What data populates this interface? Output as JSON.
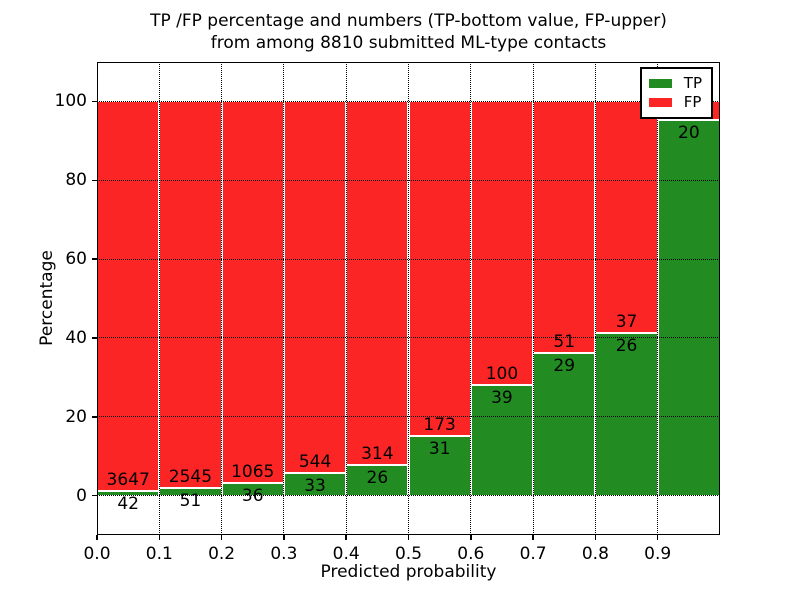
{
  "title": {
    "line1": "TP /FP percentage and numbers (TP-bottom value, FP-upper)",
    "line2": "from among 8810 submitted ML-type contacts"
  },
  "axes": {
    "xlabel": "Predicted probability",
    "ylabel": "Percentage",
    "xtick_labels": [
      "0.0",
      "0.1",
      "0.2",
      "0.3",
      "0.4",
      "0.5",
      "0.6",
      "0.7",
      "0.8",
      "0.9"
    ],
    "yticks": [
      {
        "value": 0,
        "label": "0"
      },
      {
        "value": 20,
        "label": "20"
      },
      {
        "value": 40,
        "label": "40"
      },
      {
        "value": 60,
        "label": "60"
      },
      {
        "value": 80,
        "label": "80"
      },
      {
        "value": 100,
        "label": "100"
      }
    ],
    "xlim": [
      0.0,
      1.0
    ],
    "ylim": [
      -10,
      110
    ],
    "grid_style": "dotted"
  },
  "legend": {
    "position": "upper-right",
    "items": [
      {
        "label": "TP",
        "color": "#228b22"
      },
      {
        "label": "FP",
        "color": "#fc2525"
      }
    ]
  },
  "colors": {
    "tp_green": "#228b22",
    "fp_red": "#fc2525",
    "bar_edge": "#ffffff",
    "grid": "#000000",
    "background": "#ffffff",
    "text": "#000000"
  },
  "chart_data": {
    "type": "bar",
    "stacked": true,
    "normalized_to_percent": true,
    "title": "TP /FP percentage and numbers (TP-bottom value, FP-upper) from among 8810 submitted ML-type contacts",
    "xlabel": "Predicted probability",
    "ylabel": "Percentage",
    "total_contacts": 8810,
    "bin_width": 0.1,
    "ylim": [
      -10,
      110
    ],
    "grid": true,
    "legend_entries": [
      "TP",
      "FP"
    ],
    "bins": [
      {
        "x0": 0.0,
        "x1": 0.1,
        "tp": 42,
        "fp": 3647,
        "tp_label": "42",
        "fp_label": "3647"
      },
      {
        "x0": 0.1,
        "x1": 0.2,
        "tp": 51,
        "fp": 2545,
        "tp_label": "51",
        "fp_label": "2545"
      },
      {
        "x0": 0.2,
        "x1": 0.3,
        "tp": 36,
        "fp": 1065,
        "tp_label": "36",
        "fp_label": "1065"
      },
      {
        "x0": 0.3,
        "x1": 0.4,
        "tp": 33,
        "fp": 544,
        "tp_label": "33",
        "fp_label": "544"
      },
      {
        "x0": 0.4,
        "x1": 0.5,
        "tp": 26,
        "fp": 314,
        "tp_label": "26",
        "fp_label": "314"
      },
      {
        "x0": 0.5,
        "x1": 0.6,
        "tp": 31,
        "fp": 173,
        "tp_label": "31",
        "fp_label": "173"
      },
      {
        "x0": 0.6,
        "x1": 0.7,
        "tp": 39,
        "fp": 100,
        "tp_label": "39",
        "fp_label": "100"
      },
      {
        "x0": 0.7,
        "x1": 0.8,
        "tp": 29,
        "fp": 51,
        "tp_label": "29",
        "fp_label": "51"
      },
      {
        "x0": 0.8,
        "x1": 0.9,
        "tp": 26,
        "fp": 37,
        "tp_label": "26",
        "fp_label": "37"
      },
      {
        "x0": 0.9,
        "x1": 1.0,
        "tp": 20,
        "fp": 1,
        "tp_label": "20",
        "fp_label": "",
        "fp_label_hidden_behind_legend": true
      }
    ]
  }
}
